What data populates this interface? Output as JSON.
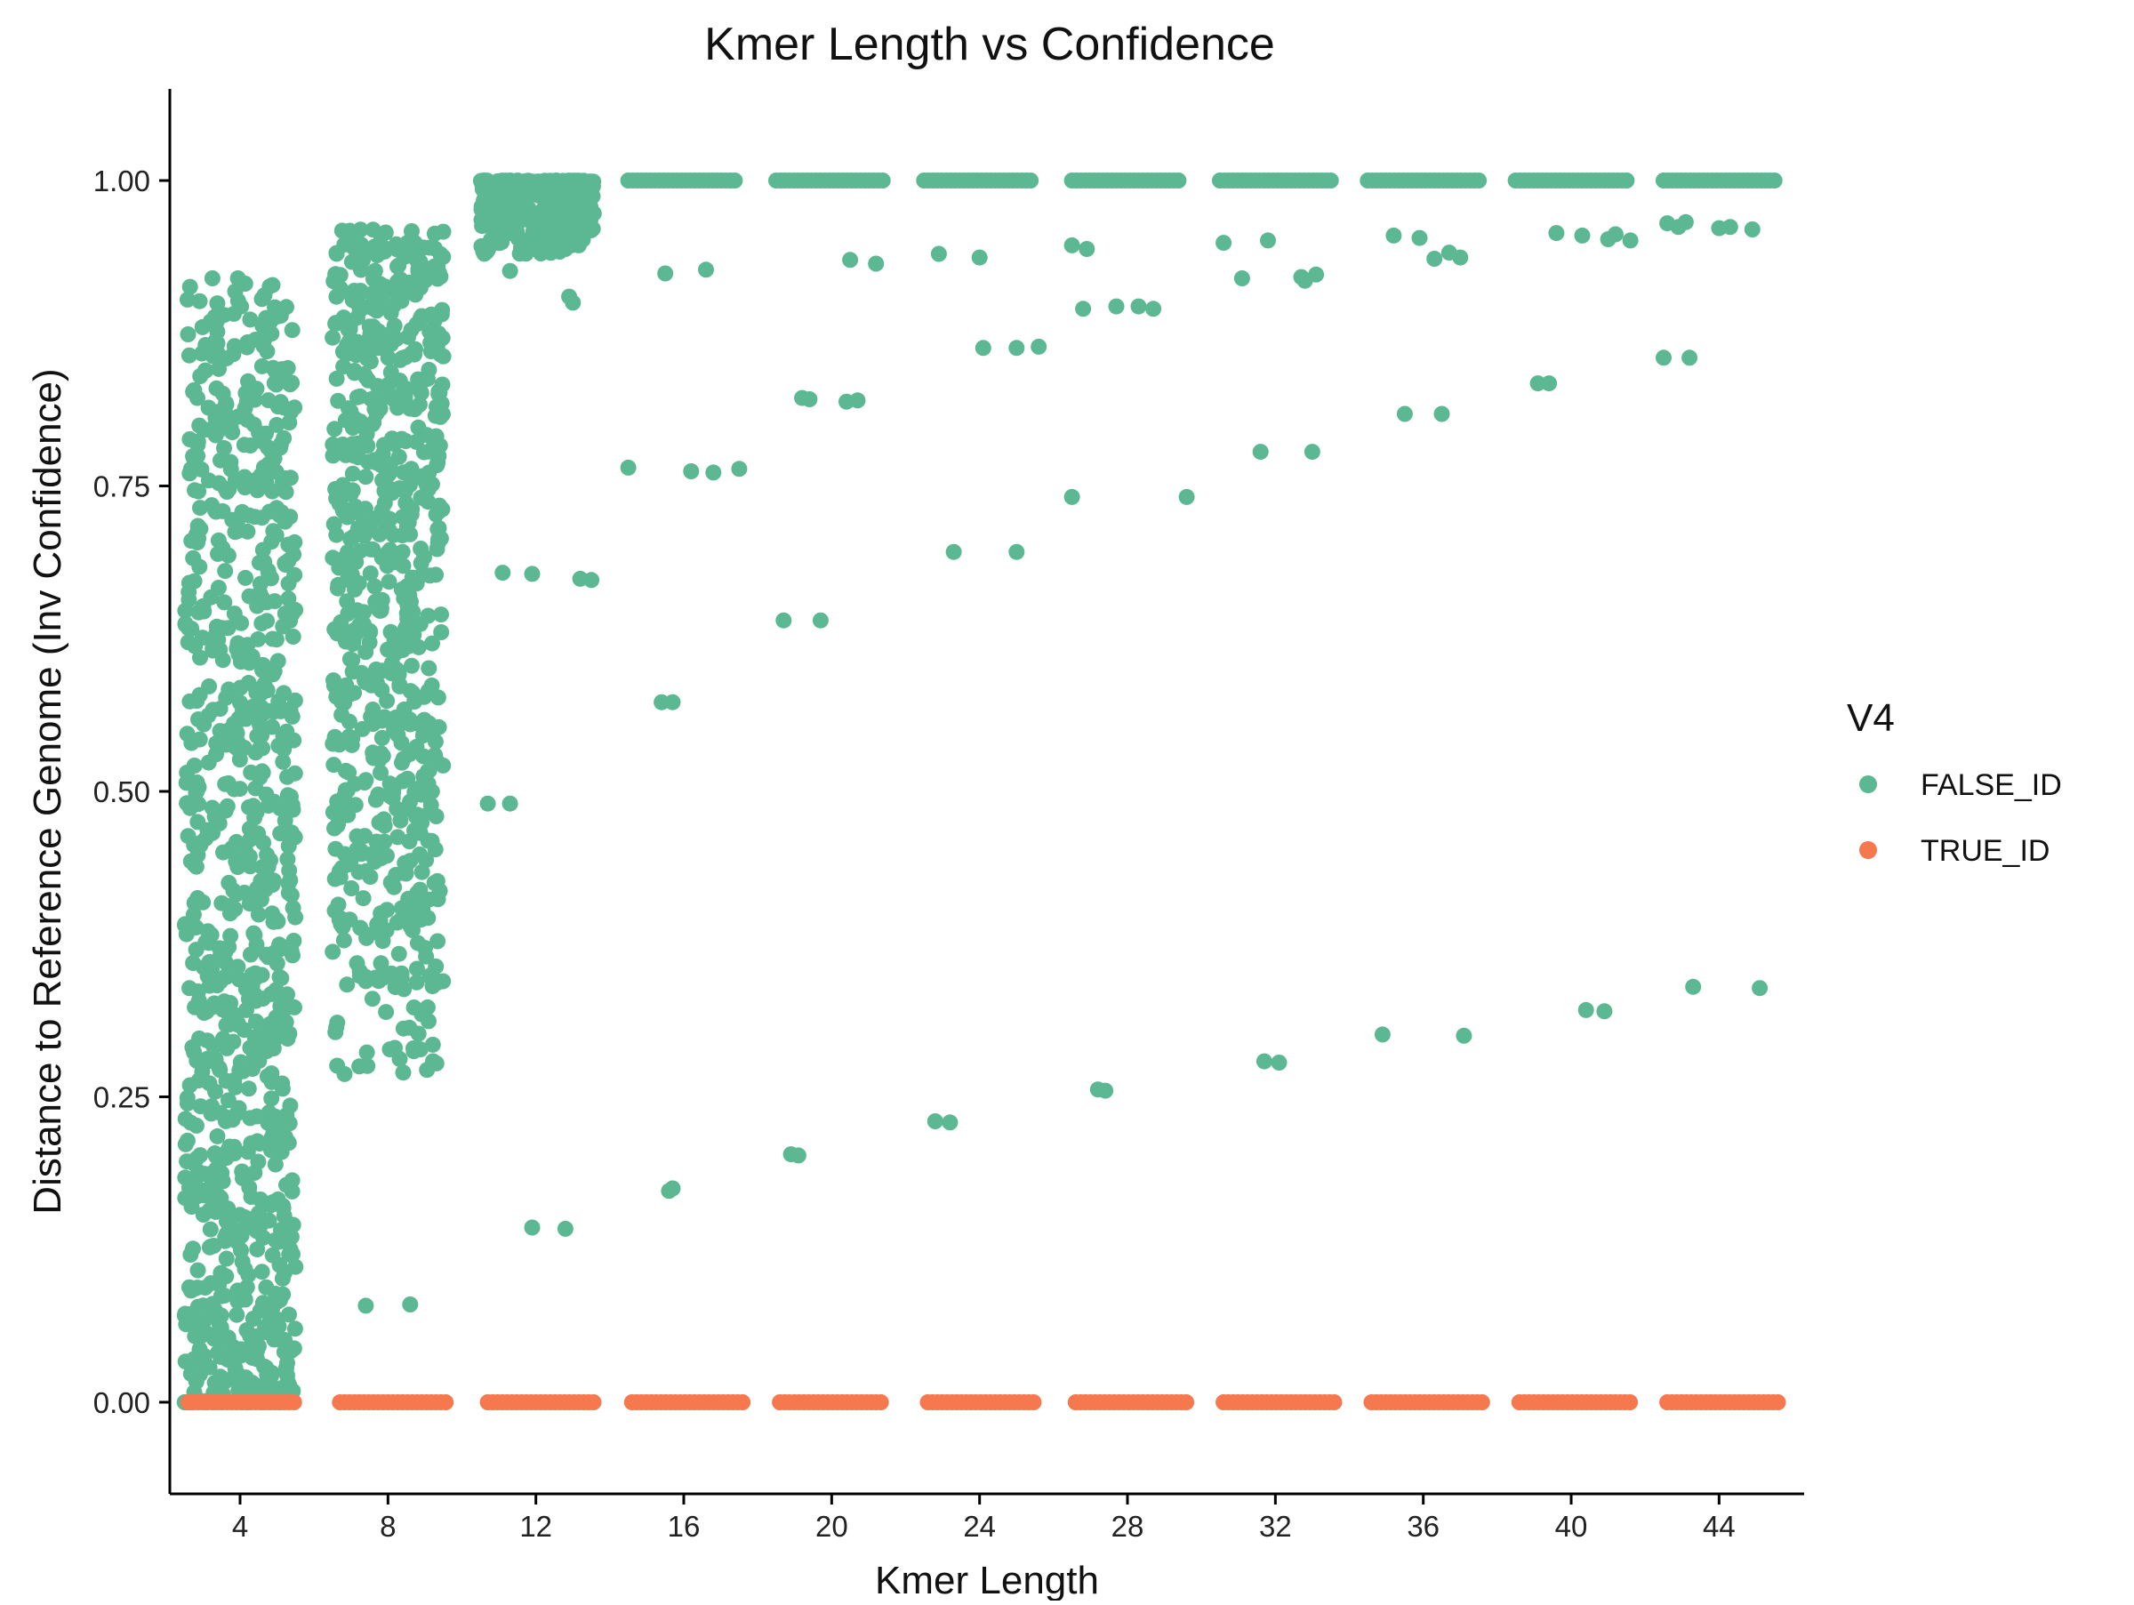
{
  "chart_data": {
    "type": "scatter",
    "title": "Kmer Length vs Confidence",
    "xlabel": "Kmer Length",
    "ylabel": "Distance to Reference Genome (Inv Confidence)",
    "xlim": [
      2.1,
      46.3
    ],
    "ylim": [
      -0.075,
      1.075
    ],
    "x_ticks": [
      4,
      8,
      12,
      16,
      20,
      24,
      28,
      32,
      36,
      40,
      44
    ],
    "x_tick_labels": [
      "4",
      "8",
      "12",
      "16",
      "20",
      "24",
      "28",
      "32",
      "36",
      "40",
      "44"
    ],
    "y_ticks": [
      0,
      0.25,
      0.5,
      0.75,
      1.0
    ],
    "y_tick_labels": [
      "0.00",
      "0.25",
      "0.50",
      "0.75",
      "1.00"
    ],
    "grid": false,
    "legend": {
      "title": "V4",
      "placement": "right"
    },
    "series": [
      {
        "name": "FALSE_ID",
        "color": "#5BB893",
        "clusters": [
          {
            "x_range": [
              2.5,
              5.5
            ],
            "y_range": [
              0.0,
              0.92
            ],
            "count": 900,
            "note": "dense jitter cloud at k=3-5"
          },
          {
            "x_range": [
              6.5,
              9.5
            ],
            "y_range": [
              0.08,
              0.97
            ],
            "count": 700,
            "note": "dense jitter cloud at k=7-9, mostly above 0.33"
          },
          {
            "x_range": [
              10.5,
              13.6
            ],
            "y_range": [
              0.94,
              1.0
            ],
            "count": 280,
            "note": "cluster near 1.0 at k=11-13"
          }
        ],
        "bands_at_1": [
          [
            14.5,
            17.5
          ],
          [
            18.5,
            21.5
          ],
          [
            22.5,
            25.5
          ],
          [
            26.5,
            29.5
          ],
          [
            30.5,
            33.5
          ],
          [
            34.5,
            37.5
          ],
          [
            38.5,
            41.5
          ],
          [
            42.5,
            45.5
          ]
        ],
        "points": [
          [
            11.3,
            0.926
          ],
          [
            11.9,
            0.952
          ],
          [
            12.8,
            0.944
          ],
          [
            12.9,
            0.905
          ],
          [
            13.0,
            0.9
          ],
          [
            15.5,
            0.924
          ],
          [
            16.6,
            0.927
          ],
          [
            20.5,
            0.935
          ],
          [
            21.2,
            0.932
          ],
          [
            22.9,
            0.94
          ],
          [
            24.0,
            0.937
          ],
          [
            26.5,
            0.947
          ],
          [
            26.9,
            0.944
          ],
          [
            30.6,
            0.949
          ],
          [
            31.8,
            0.951
          ],
          [
            35.2,
            0.955
          ],
          [
            35.9,
            0.953
          ],
          [
            36.3,
            0.936
          ],
          [
            36.7,
            0.941
          ],
          [
            37.0,
            0.937
          ],
          [
            39.6,
            0.957
          ],
          [
            40.3,
            0.955
          ],
          [
            41.0,
            0.952
          ],
          [
            41.2,
            0.956
          ],
          [
            41.6,
            0.951
          ],
          [
            42.6,
            0.965
          ],
          [
            42.9,
            0.962
          ],
          [
            43.1,
            0.966
          ],
          [
            44.0,
            0.961
          ],
          [
            44.3,
            0.962
          ],
          [
            44.9,
            0.96
          ],
          [
            31.1,
            0.92
          ],
          [
            32.7,
            0.921
          ],
          [
            32.8,
            0.918
          ],
          [
            33.1,
            0.923
          ],
          [
            26.8,
            0.895
          ],
          [
            27.7,
            0.897
          ],
          [
            28.3,
            0.897
          ],
          [
            28.7,
            0.895
          ],
          [
            24.1,
            0.863
          ],
          [
            25.0,
            0.863
          ],
          [
            25.6,
            0.864
          ],
          [
            19.2,
            0.822
          ],
          [
            19.4,
            0.821
          ],
          [
            20.4,
            0.819
          ],
          [
            20.7,
            0.82
          ],
          [
            39.1,
            0.834
          ],
          [
            39.4,
            0.834
          ],
          [
            42.5,
            0.855
          ],
          [
            43.2,
            0.855
          ],
          [
            35.5,
            0.809
          ],
          [
            36.5,
            0.809
          ],
          [
            31.6,
            0.778
          ],
          [
            33.0,
            0.778
          ],
          [
            14.5,
            0.765
          ],
          [
            16.2,
            0.762
          ],
          [
            16.8,
            0.761
          ],
          [
            17.5,
            0.764
          ],
          [
            26.5,
            0.741
          ],
          [
            29.6,
            0.741
          ],
          [
            23.3,
            0.696
          ],
          [
            25.0,
            0.696
          ],
          [
            11.1,
            0.679
          ],
          [
            11.9,
            0.678
          ],
          [
            13.2,
            0.674
          ],
          [
            13.5,
            0.673
          ],
          [
            18.7,
            0.64
          ],
          [
            19.7,
            0.64
          ],
          [
            15.4,
            0.573
          ],
          [
            15.7,
            0.573
          ],
          [
            10.7,
            0.49
          ],
          [
            11.3,
            0.49
          ],
          [
            43.3,
            0.34
          ],
          [
            45.1,
            0.339
          ],
          [
            40.4,
            0.321
          ],
          [
            40.9,
            0.32
          ],
          [
            34.9,
            0.301
          ],
          [
            37.1,
            0.3
          ],
          [
            31.7,
            0.279
          ],
          [
            32.1,
            0.278
          ],
          [
            27.2,
            0.256
          ],
          [
            27.4,
            0.255
          ],
          [
            22.8,
            0.23
          ],
          [
            23.2,
            0.229
          ],
          [
            18.9,
            0.203
          ],
          [
            19.1,
            0.202
          ],
          [
            15.6,
            0.173
          ],
          [
            15.7,
            0.175
          ],
          [
            11.9,
            0.143
          ],
          [
            12.8,
            0.142
          ],
          [
            7.4,
            0.079
          ],
          [
            8.6,
            0.08
          ]
        ]
      },
      {
        "name": "TRUE_ID",
        "color": "#F5784F",
        "y_value": 0,
        "bands": [
          [
            2.6,
            5.5
          ],
          [
            6.7,
            9.6
          ],
          [
            10.7,
            13.6
          ],
          [
            14.6,
            17.6
          ],
          [
            18.6,
            21.4
          ],
          [
            22.6,
            25.5
          ],
          [
            26.6,
            29.7
          ],
          [
            30.6,
            33.6
          ],
          [
            34.6,
            37.6
          ],
          [
            38.6,
            41.6
          ],
          [
            42.6,
            45.6
          ]
        ]
      }
    ]
  }
}
